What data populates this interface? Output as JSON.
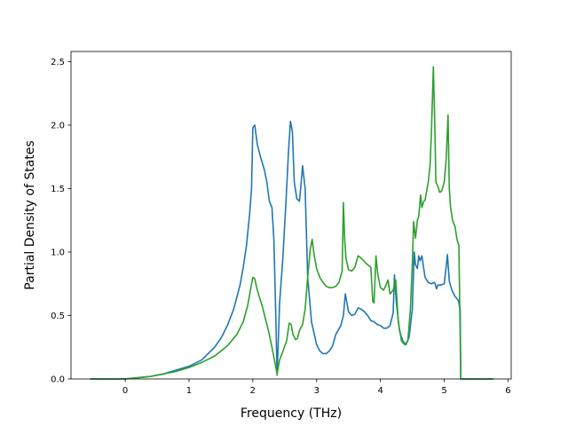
{
  "chart_data": {
    "type": "line",
    "title": "",
    "xlabel": "Frequency (THz)",
    "ylabel": "Partial Density of States",
    "xlim": [
      -0.85,
      6.05
    ],
    "ylim": [
      0.0,
      2.58
    ],
    "xticks": [
      0,
      1,
      2,
      3,
      4,
      5,
      6
    ],
    "yticks": [
      0.0,
      0.5,
      1.0,
      1.5,
      2.0,
      2.5
    ],
    "xtick_labels": [
      "0",
      "1",
      "2",
      "3",
      "4",
      "5",
      "6"
    ],
    "ytick_labels": [
      "0.0",
      "0.5",
      "1.0",
      "1.5",
      "2.0",
      "2.5"
    ],
    "grid": false,
    "series": [
      {
        "color": "#1f77b4",
        "x": [
          -0.55,
          -0.3,
          0.0,
          0.2,
          0.4,
          0.6,
          0.8,
          1.0,
          1.2,
          1.4,
          1.5,
          1.6,
          1.7,
          1.8,
          1.85,
          1.9,
          1.95,
          1.98,
          2.0,
          2.03,
          2.07,
          2.12,
          2.18,
          2.22,
          2.26,
          2.3,
          2.33,
          2.36,
          2.38,
          2.42,
          2.47,
          2.52,
          2.56,
          2.59,
          2.62,
          2.65,
          2.69,
          2.73,
          2.75,
          2.78,
          2.82,
          2.86,
          2.92,
          3.0,
          3.05,
          3.1,
          3.15,
          3.2,
          3.25,
          3.3,
          3.38,
          3.42,
          3.45,
          3.5,
          3.55,
          3.6,
          3.65,
          3.7,
          3.75,
          3.8,
          3.85,
          3.9,
          3.95,
          4.0,
          4.05,
          4.1,
          4.15,
          4.2,
          4.22,
          4.25,
          4.3,
          4.35,
          4.4,
          4.45,
          4.5,
          4.53,
          4.55,
          4.58,
          4.6,
          4.62,
          4.65,
          4.7,
          4.75,
          4.8,
          4.85,
          4.88,
          4.9,
          4.95,
          5.0,
          5.03,
          5.05,
          5.08,
          5.12,
          5.17,
          5.22,
          5.25,
          5.26,
          5.3,
          5.5,
          5.75
        ],
        "y": [
          0.0,
          0.0,
          0.0,
          0.01,
          0.02,
          0.04,
          0.07,
          0.1,
          0.15,
          0.25,
          0.32,
          0.42,
          0.55,
          0.74,
          0.88,
          1.05,
          1.3,
          1.5,
          1.98,
          2.0,
          1.85,
          1.75,
          1.65,
          1.55,
          1.4,
          1.35,
          1.1,
          0.5,
          0.03,
          0.6,
          0.95,
          1.4,
          1.8,
          2.03,
          1.95,
          1.55,
          1.42,
          1.4,
          1.5,
          1.68,
          1.5,
          0.8,
          0.45,
          0.27,
          0.22,
          0.2,
          0.2,
          0.22,
          0.26,
          0.35,
          0.42,
          0.5,
          0.67,
          0.53,
          0.5,
          0.51,
          0.56,
          0.55,
          0.53,
          0.5,
          0.46,
          0.45,
          0.43,
          0.42,
          0.4,
          0.4,
          0.42,
          0.52,
          0.82,
          0.6,
          0.38,
          0.3,
          0.27,
          0.33,
          0.55,
          1.0,
          0.9,
          0.87,
          0.97,
          0.93,
          0.97,
          0.8,
          0.76,
          0.75,
          0.76,
          0.71,
          0.74,
          0.74,
          0.75,
          0.88,
          0.98,
          0.77,
          0.7,
          0.65,
          0.62,
          0.55,
          0.0,
          0.0,
          0.0,
          0.0
        ]
      },
      {
        "color": "#2ca02c",
        "x": [
          -0.55,
          -0.3,
          0.0,
          0.2,
          0.4,
          0.6,
          0.8,
          1.0,
          1.2,
          1.4,
          1.6,
          1.75,
          1.85,
          1.92,
          1.97,
          2.0,
          2.03,
          2.06,
          2.1,
          2.15,
          2.2,
          2.25,
          2.3,
          2.35,
          2.38,
          2.42,
          2.48,
          2.53,
          2.57,
          2.6,
          2.63,
          2.67,
          2.7,
          2.73,
          2.78,
          2.82,
          2.86,
          2.9,
          2.93,
          2.96,
          3.0,
          3.05,
          3.1,
          3.15,
          3.2,
          3.25,
          3.3,
          3.35,
          3.4,
          3.42,
          3.44,
          3.46,
          3.5,
          3.55,
          3.6,
          3.65,
          3.68,
          3.72,
          3.76,
          3.8,
          3.85,
          3.88,
          3.9,
          3.93,
          3.96,
          4.0,
          4.05,
          4.08,
          4.12,
          4.15,
          4.2,
          4.24,
          4.28,
          4.33,
          4.38,
          4.43,
          4.47,
          4.5,
          4.52,
          4.55,
          4.58,
          4.6,
          4.63,
          4.65,
          4.68,
          4.7,
          4.75,
          4.78,
          4.8,
          4.83,
          4.85,
          4.87,
          4.9,
          4.93,
          4.96,
          5.0,
          5.03,
          5.06,
          5.08,
          5.1,
          5.13,
          5.17,
          5.2,
          5.23,
          5.26,
          5.3,
          5.5,
          5.78
        ],
        "y": [
          0.0,
          0.0,
          0.0,
          0.01,
          0.02,
          0.04,
          0.06,
          0.09,
          0.13,
          0.18,
          0.26,
          0.35,
          0.45,
          0.58,
          0.72,
          0.8,
          0.79,
          0.72,
          0.65,
          0.57,
          0.47,
          0.37,
          0.25,
          0.12,
          0.04,
          0.15,
          0.23,
          0.3,
          0.44,
          0.43,
          0.35,
          0.31,
          0.32,
          0.38,
          0.43,
          0.55,
          0.8,
          1.02,
          1.1,
          0.98,
          0.87,
          0.8,
          0.76,
          0.73,
          0.72,
          0.72,
          0.73,
          0.76,
          0.85,
          1.39,
          1.1,
          0.95,
          0.86,
          0.85,
          0.88,
          0.97,
          0.96,
          0.94,
          0.92,
          0.9,
          0.88,
          0.61,
          0.6,
          0.97,
          0.82,
          0.72,
          0.7,
          0.73,
          0.78,
          0.67,
          0.7,
          0.78,
          0.45,
          0.3,
          0.27,
          0.3,
          0.55,
          0.9,
          1.24,
          1.11,
          1.25,
          1.28,
          1.45,
          1.35,
          1.4,
          1.41,
          1.55,
          1.7,
          1.95,
          2.46,
          2.05,
          1.55,
          1.52,
          1.47,
          1.48,
          1.55,
          1.72,
          2.08,
          1.5,
          1.35,
          1.25,
          1.2,
          1.1,
          1.05,
          0.0,
          0.0,
          0.0,
          0.0
        ]
      }
    ]
  }
}
